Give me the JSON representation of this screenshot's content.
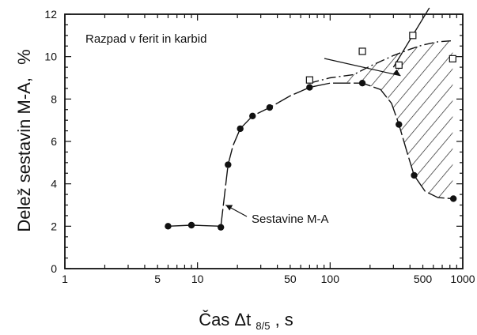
{
  "chart_data": {
    "type": "scatter",
    "title": "",
    "xlabel": "Čas  Δt",
    "xlabel_sub": "8/5",
    "xlabel_suffix": ",  s",
    "ylabel": "Delež  sestavin  M-A,",
    "ylabel_unit": "%",
    "xscale": "log",
    "xlim": [
      1,
      1000
    ],
    "ylim": [
      0,
      12
    ],
    "x_ticks": [
      1,
      5,
      10,
      50,
      100,
      500,
      1000
    ],
    "x_tick_labels": [
      "1",
      "5",
      "10",
      "50",
      "100",
      "500",
      "1000"
    ],
    "y_ticks": [
      0,
      2,
      4,
      6,
      8,
      10,
      12
    ],
    "y_tick_labels": [
      "0",
      "2",
      "4",
      "6",
      "8",
      "10",
      "12"
    ],
    "grid": false,
    "series": [
      {
        "marker": "filled-circle",
        "points": [
          [
            6,
            2.0
          ],
          [
            9,
            2.05
          ],
          [
            15,
            1.95
          ],
          [
            17,
            4.9
          ],
          [
            21,
            6.6
          ],
          [
            26,
            7.2
          ],
          [
            35,
            7.6
          ],
          [
            70,
            8.55
          ],
          [
            175,
            8.75
          ],
          [
            330,
            6.8
          ],
          [
            430,
            4.4
          ],
          [
            850,
            3.3
          ]
        ]
      },
      {
        "marker": "open-square",
        "points": [
          [
            70,
            8.9
          ],
          [
            175,
            10.25
          ],
          [
            330,
            9.6
          ],
          [
            420,
            11.0
          ],
          [
            840,
            9.9
          ]
        ]
      }
    ],
    "annotations": [
      {
        "text": "Razpad  v  ferit  in  karbid"
      },
      {
        "text": "Sestavine  M-A"
      }
    ]
  }
}
